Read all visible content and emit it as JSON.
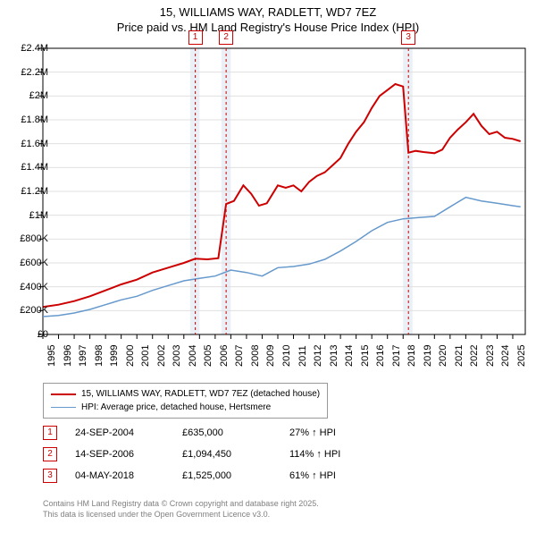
{
  "title_line1": "15, WILLIAMS WAY, RADLETT, WD7 7EZ",
  "title_line2": "Price paid vs. HM Land Registry's House Price Index (HPI)",
  "chart": {
    "type": "line",
    "background_color": "#ffffff",
    "band_color": "#dde6f0",
    "grid_color": "#e0e0e0",
    "font_size_axis": 11,
    "font_size_title": 13,
    "x": {
      "min": 1995,
      "max": 2025.8,
      "ticks": [
        1995,
        1996,
        1997,
        1998,
        1999,
        2000,
        2001,
        2002,
        2003,
        2004,
        2005,
        2006,
        2007,
        2008,
        2009,
        2010,
        2011,
        2012,
        2013,
        2014,
        2015,
        2016,
        2017,
        2018,
        2019,
        2020,
        2021,
        2022,
        2023,
        2024,
        2025
      ],
      "tick_labels": [
        "1995",
        "1996",
        "1997",
        "1998",
        "1999",
        "2000",
        "2001",
        "2002",
        "2003",
        "2004",
        "2005",
        "2006",
        "2007",
        "2008",
        "2009",
        "2010",
        "2011",
        "2012",
        "2013",
        "2014",
        "2015",
        "2016",
        "2017",
        "2018",
        "2019",
        "2020",
        "2021",
        "2022",
        "2023",
        "2024",
        "2025"
      ]
    },
    "y": {
      "min": 0,
      "max": 2400000,
      "ticks": [
        0,
        200000,
        400000,
        600000,
        800000,
        1000000,
        1200000,
        1400000,
        1600000,
        1800000,
        2000000,
        2200000,
        2400000
      ],
      "tick_labels": [
        "£0",
        "£200K",
        "£400K",
        "£600K",
        "£800K",
        "£1M",
        "£1.2M",
        "£1.4M",
        "£1.6M",
        "£1.8M",
        "£2M",
        "£2.2M",
        "£2.4M"
      ]
    },
    "bands": [
      {
        "x_start": 2004.4,
        "x_end": 2005.0
      },
      {
        "x_start": 2006.4,
        "x_end": 2007.0
      },
      {
        "x_start": 2018.0,
        "x_end": 2018.6
      }
    ],
    "markers": [
      {
        "label": "1",
        "x": 2004.73
      },
      {
        "label": "2",
        "x": 2006.7
      },
      {
        "label": "3",
        "x": 2018.34
      }
    ],
    "series": [
      {
        "name": "price_paid",
        "color": "#cc0000",
        "width": 2,
        "points": [
          [
            1995.0,
            230000
          ],
          [
            1996.0,
            250000
          ],
          [
            1997.0,
            280000
          ],
          [
            1998.0,
            320000
          ],
          [
            1999.0,
            370000
          ],
          [
            2000.0,
            420000
          ],
          [
            2001.0,
            460000
          ],
          [
            2002.0,
            520000
          ],
          [
            2003.0,
            560000
          ],
          [
            2004.0,
            600000
          ],
          [
            2004.73,
            635000
          ],
          [
            2005.5,
            630000
          ],
          [
            2006.2,
            640000
          ],
          [
            2006.7,
            1094450
          ],
          [
            2007.2,
            1120000
          ],
          [
            2007.8,
            1250000
          ],
          [
            2008.3,
            1180000
          ],
          [
            2008.8,
            1080000
          ],
          [
            2009.3,
            1100000
          ],
          [
            2010.0,
            1250000
          ],
          [
            2010.5,
            1230000
          ],
          [
            2011.0,
            1250000
          ],
          [
            2011.5,
            1200000
          ],
          [
            2012.0,
            1280000
          ],
          [
            2012.5,
            1330000
          ],
          [
            2013.0,
            1360000
          ],
          [
            2013.5,
            1420000
          ],
          [
            2014.0,
            1480000
          ],
          [
            2014.5,
            1600000
          ],
          [
            2015.0,
            1700000
          ],
          [
            2015.5,
            1780000
          ],
          [
            2016.0,
            1900000
          ],
          [
            2016.5,
            2000000
          ],
          [
            2017.0,
            2050000
          ],
          [
            2017.5,
            2100000
          ],
          [
            2018.0,
            2080000
          ],
          [
            2018.34,
            1525000
          ],
          [
            2018.8,
            1540000
          ],
          [
            2019.3,
            1530000
          ],
          [
            2020.0,
            1520000
          ],
          [
            2020.5,
            1550000
          ],
          [
            2021.0,
            1650000
          ],
          [
            2021.5,
            1720000
          ],
          [
            2022.0,
            1780000
          ],
          [
            2022.5,
            1850000
          ],
          [
            2023.0,
            1750000
          ],
          [
            2023.5,
            1680000
          ],
          [
            2024.0,
            1700000
          ],
          [
            2024.5,
            1650000
          ],
          [
            2025.0,
            1640000
          ],
          [
            2025.5,
            1620000
          ]
        ]
      },
      {
        "name": "hpi",
        "color": "#6699cc",
        "width": 1.5,
        "points": [
          [
            1995.0,
            150000
          ],
          [
            1996.0,
            160000
          ],
          [
            1997.0,
            180000
          ],
          [
            1998.0,
            210000
          ],
          [
            1999.0,
            250000
          ],
          [
            2000.0,
            290000
          ],
          [
            2001.0,
            320000
          ],
          [
            2002.0,
            370000
          ],
          [
            2003.0,
            410000
          ],
          [
            2004.0,
            450000
          ],
          [
            2005.0,
            470000
          ],
          [
            2006.0,
            490000
          ],
          [
            2007.0,
            540000
          ],
          [
            2008.0,
            520000
          ],
          [
            2009.0,
            490000
          ],
          [
            2010.0,
            560000
          ],
          [
            2011.0,
            570000
          ],
          [
            2012.0,
            590000
          ],
          [
            2013.0,
            630000
          ],
          [
            2014.0,
            700000
          ],
          [
            2015.0,
            780000
          ],
          [
            2016.0,
            870000
          ],
          [
            2017.0,
            940000
          ],
          [
            2018.0,
            970000
          ],
          [
            2019.0,
            980000
          ],
          [
            2020.0,
            990000
          ],
          [
            2021.0,
            1070000
          ],
          [
            2022.0,
            1150000
          ],
          [
            2023.0,
            1120000
          ],
          [
            2024.0,
            1100000
          ],
          [
            2025.0,
            1080000
          ],
          [
            2025.5,
            1070000
          ]
        ]
      }
    ]
  },
  "legend": {
    "items": [
      {
        "color": "#cc0000",
        "label": "15, WILLIAMS WAY, RADLETT, WD7 7EZ (detached house)"
      },
      {
        "color": "#6699cc",
        "label": "HPI: Average price, detached house, Hertsmere"
      }
    ]
  },
  "sales": [
    {
      "marker": "1",
      "date": "24-SEP-2004",
      "price": "£635,000",
      "pct": "27% ↑ HPI"
    },
    {
      "marker": "2",
      "date": "14-SEP-2006",
      "price": "£1,094,450",
      "pct": "114% ↑ HPI"
    },
    {
      "marker": "3",
      "date": "04-MAY-2018",
      "price": "£1,525,000",
      "pct": "61% ↑ HPI"
    }
  ],
  "footer_line1": "Contains HM Land Registry data © Crown copyright and database right 2025.",
  "footer_line2": "This data is licensed under the Open Government Licence v3.0."
}
